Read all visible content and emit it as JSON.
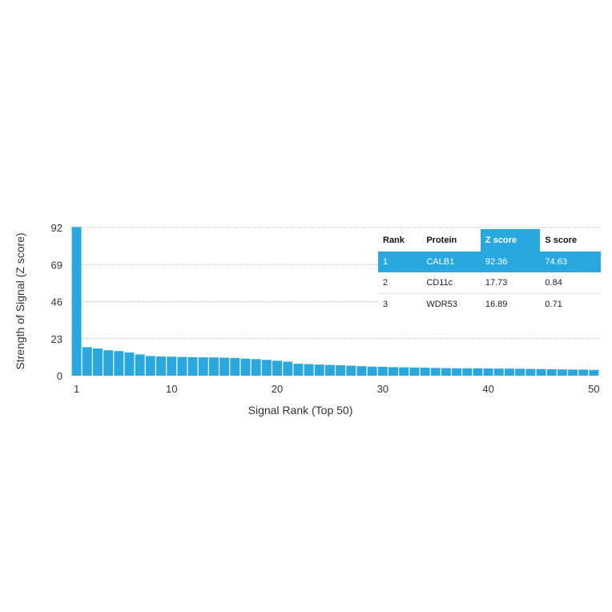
{
  "chart_data": {
    "type": "bar",
    "xlabel": "Signal Rank (Top 50)",
    "ylabel": "Strength of Signal (Z score)",
    "ylim": [
      0,
      92
    ],
    "yticks": [
      0,
      23,
      46,
      69,
      92
    ],
    "xticks": [
      1,
      10,
      20,
      30,
      40,
      50
    ],
    "grid": true,
    "x": [
      1,
      2,
      3,
      4,
      5,
      6,
      7,
      8,
      9,
      10,
      11,
      12,
      13,
      14,
      15,
      16,
      17,
      18,
      19,
      20,
      21,
      22,
      23,
      24,
      25,
      26,
      27,
      28,
      29,
      30,
      31,
      32,
      33,
      34,
      35,
      36,
      37,
      38,
      39,
      40,
      41,
      42,
      43,
      44,
      45,
      46,
      47,
      48,
      49,
      50
    ],
    "values": [
      92.36,
      17.73,
      16.89,
      15.8,
      15.3,
      14.4,
      13.2,
      12.2,
      11.9,
      11.8,
      11.6,
      11.5,
      11.4,
      11.3,
      11.2,
      11.0,
      10.6,
      10.3,
      9.8,
      9.3,
      8.7,
      7.4,
      7.2,
      6.9,
      6.7,
      6.5,
      6.2,
      5.9,
      5.6,
      5.5,
      5.3,
      5.2,
      5.1,
      5.0,
      4.8,
      4.7,
      4.6,
      4.6,
      4.6,
      4.5,
      4.4,
      4.4,
      4.3,
      4.2,
      4.1,
      4.0,
      3.9,
      3.8,
      3.8,
      3.6
    ],
    "bar_color": "#29a8e0",
    "table": {
      "columns": [
        "Rank",
        "Protein",
        "Z score",
        "S score"
      ],
      "highlight_column": 2,
      "rows": [
        [
          "1",
          "CALB1",
          "92.36",
          "74.63"
        ],
        [
          "2",
          "CD11c",
          "17.73",
          "0.84"
        ],
        [
          "3",
          "WDR53",
          "16.89",
          "0.71"
        ]
      ]
    }
  }
}
